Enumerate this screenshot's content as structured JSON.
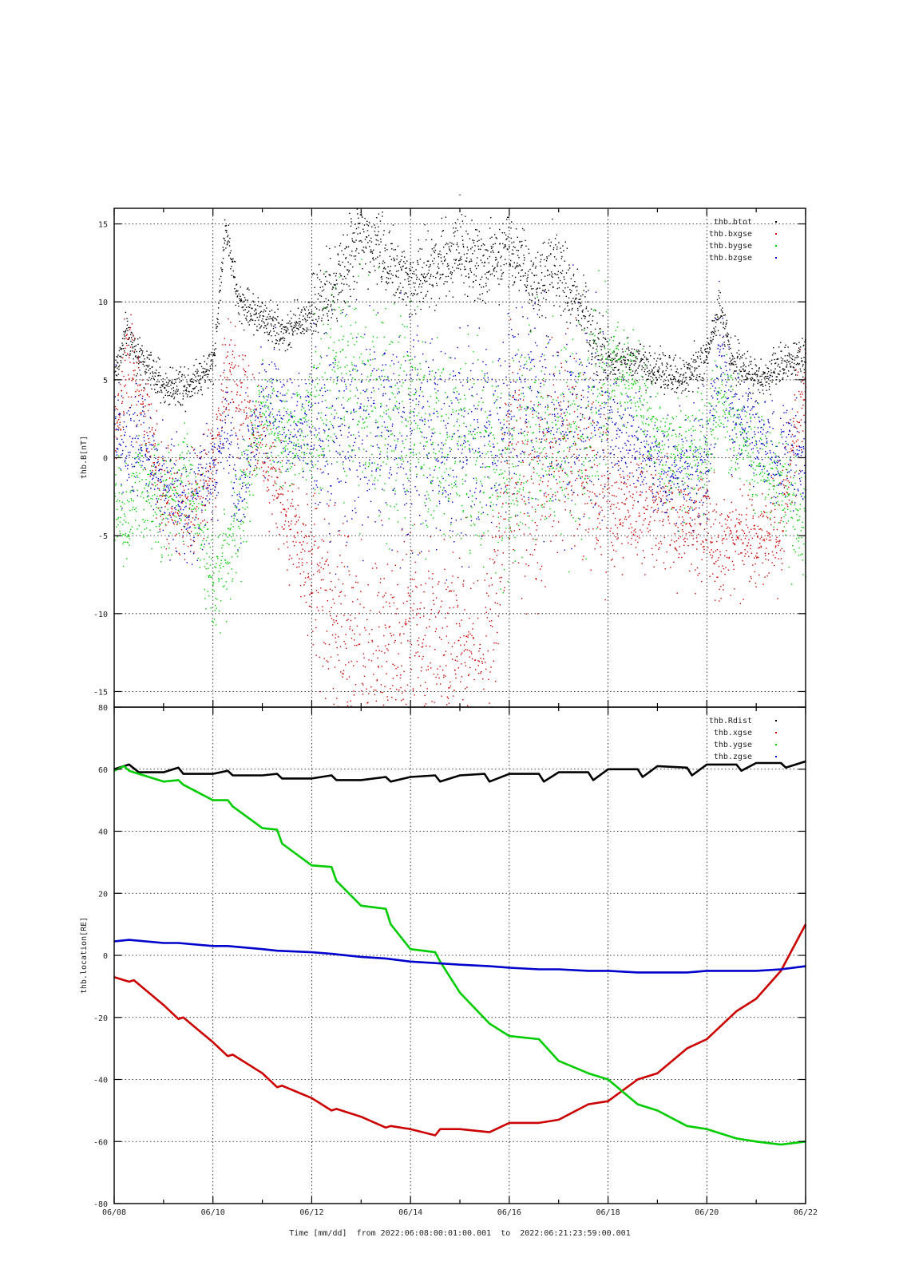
{
  "page": {
    "top_mark": "-"
  },
  "chart_data": [
    {
      "type": "scatter",
      "ylabel": "thb.B[nT]",
      "ylim": [
        -16,
        16
      ],
      "xlim": [
        "2022-06-08",
        "2022-06-22"
      ],
      "y_ticks": [
        -15,
        -10,
        -5,
        0,
        5,
        10,
        15
      ],
      "grid": true,
      "legend_position": "top-right",
      "series": [
        {
          "name": "thb.btot",
          "color": "#000000",
          "x": [
            "06/08 00h",
            "06/08 06h",
            "06/08 12h",
            "06/09 00h",
            "06/09 12h",
            "06/10 00h",
            "06/10 06h",
            "06/10 12h",
            "06/11 00h",
            "06/11 12h",
            "06/12 00h",
            "06/12 12h",
            "06/13 00h",
            "06/13 12h",
            "06/14 00h",
            "06/14 12h",
            "06/15 00h",
            "06/15 12h",
            "06/16 00h",
            "06/16 12h",
            "06/17 00h",
            "06/17 12h",
            "06/18 00h",
            "06/18 12h",
            "06/19 00h",
            "06/19 12h",
            "06/20 00h",
            "06/20 06h",
            "06/20 12h",
            "06/21 00h",
            "06/21 12h",
            "06/22 00h"
          ],
          "values": [
            5.5,
            8.0,
            6.5,
            4.5,
            4.8,
            6.0,
            15.0,
            10.0,
            9.0,
            8.0,
            9.5,
            11.0,
            14.5,
            13.0,
            11.0,
            12.5,
            13.5,
            12.0,
            14.0,
            11.0,
            12.0,
            9.5,
            6.0,
            6.5,
            5.5,
            5.0,
            6.5,
            9.5,
            6.5,
            5.0,
            6.0,
            6.5
          ]
        },
        {
          "name": "thb.bxgse",
          "color": "#cc0000",
          "x": [
            "06/08 00h",
            "06/08 06h",
            "06/08 12h",
            "06/09 00h",
            "06/09 12h",
            "06/10 00h",
            "06/10 06h",
            "06/10 12h",
            "06/11 00h",
            "06/11 12h",
            "06/12 00h",
            "06/12 12h",
            "06/13 00h",
            "06/13 12h",
            "06/14 00h",
            "06/14 12h",
            "06/15 00h",
            "06/15 12h",
            "06/16 00h",
            "06/16 12h",
            "06/17 00h",
            "06/17 12h",
            "06/18 00h",
            "06/18 12h",
            "06/19 00h",
            "06/19 12h",
            "06/20 00h",
            "06/20 06h",
            "06/20 12h",
            "06/21 00h",
            "06/21 12h",
            "06/22 00h"
          ],
          "values": [
            1.0,
            6.5,
            4.0,
            -2.5,
            -3.5,
            -1.0,
            6.0,
            4.0,
            1.0,
            -4.0,
            -7.0,
            -10.0,
            -14.0,
            -13.0,
            -11.0,
            -12.0,
            -12.0,
            -14.0,
            1.0,
            -3.0,
            2.0,
            0.0,
            -3.0,
            -3.5,
            -3.5,
            -4.0,
            -4.5,
            -7.0,
            -4.5,
            -5.5,
            -4.0,
            5.0
          ]
        },
        {
          "name": "thb.bygse",
          "color": "#00cc00",
          "x": [
            "06/08 00h",
            "06/08 06h",
            "06/08 12h",
            "06/09 00h",
            "06/09 12h",
            "06/10 00h",
            "06/10 06h",
            "06/10 12h",
            "06/11 00h",
            "06/11 12h",
            "06/12 00h",
            "06/12 12h",
            "06/13 00h",
            "06/13 12h",
            "06/14 00h",
            "06/14 12h",
            "06/15 00h",
            "06/15 12h",
            "06/16 00h",
            "06/16 12h",
            "06/17 00h",
            "06/17 12h",
            "06/18 00h",
            "06/18 12h",
            "06/19 00h",
            "06/19 12h",
            "06/20 00h",
            "06/20 06h",
            "06/20 12h",
            "06/21 00h",
            "06/21 12h",
            "06/22 00h"
          ],
          "values": [
            -3.0,
            -4.0,
            -2.0,
            -3.0,
            -1.0,
            -8.0,
            -6.0,
            -4.0,
            3.0,
            1.0,
            2.5,
            4.5,
            4.0,
            2.5,
            3.0,
            0.0,
            1.0,
            -0.5,
            -1.0,
            1.0,
            2.0,
            1.0,
            5.5,
            5.0,
            1.0,
            0.0,
            1.0,
            4.0,
            2.0,
            0.0,
            -2.0,
            -5.0
          ]
        },
        {
          "name": "thb.bzgse",
          "color": "#0000cc",
          "x": [
            "06/08 00h",
            "06/08 06h",
            "06/08 12h",
            "06/09 00h",
            "06/09 12h",
            "06/10 00h",
            "06/10 06h",
            "06/10 12h",
            "06/11 00h",
            "06/11 12h",
            "06/12 00h",
            "06/12 12h",
            "06/13 00h",
            "06/13 12h",
            "06/14 00h",
            "06/14 12h",
            "06/15 00h",
            "06/15 12h",
            "06/16 00h",
            "06/16 12h",
            "06/17 00h",
            "06/17 12h",
            "06/18 00h",
            "06/18 12h",
            "06/19 00h",
            "06/19 12h",
            "06/20 00h",
            "06/20 06h",
            "06/20 12h",
            "06/21 00h",
            "06/21 12h",
            "06/22 00h"
          ],
          "values": [
            2.0,
            0.0,
            1.5,
            -2.0,
            -3.0,
            -1.0,
            2.0,
            -3.0,
            4.0,
            2.0,
            2.0,
            1.0,
            2.5,
            2.0,
            2.0,
            1.0,
            0.5,
            1.5,
            3.0,
            4.0,
            2.0,
            3.0,
            2.0,
            1.5,
            -1.0,
            -1.0,
            0.0,
            7.0,
            3.0,
            1.0,
            0.0,
            0.0
          ]
        }
      ]
    },
    {
      "type": "line",
      "ylabel": "thb.location[RE]",
      "xlabel": "Time [mm/dd]  from 2022:06:08:00:01:00.001  to  2022:06:21:23:59:00.001",
      "ylim": [
        -80,
        80
      ],
      "xlim": [
        "2022-06-08",
        "2022-06-22"
      ],
      "y_ticks": [
        -80,
        -60,
        -40,
        -20,
        0,
        20,
        40,
        60,
        80
      ],
      "x_ticks": [
        "06/08",
        "06/10",
        "06/12",
        "06/14",
        "06/16",
        "06/18",
        "06/20",
        "06/22"
      ],
      "grid": true,
      "legend_position": "top-right",
      "series": [
        {
          "name": "thb.Rdist",
          "color": "#000000",
          "x": [
            0,
            0.3,
            0.5,
            1.0,
            1.3,
            1.4,
            2.0,
            2.3,
            2.4,
            3.0,
            3.3,
            3.4,
            4.0,
            4.4,
            4.5,
            5.0,
            5.5,
            5.6,
            6.0,
            6.5,
            6.6,
            7.0,
            7.5,
            7.6,
            8.0,
            8.6,
            8.7,
            9.0,
            9.6,
            9.7,
            10.0,
            10.6,
            10.7,
            11.0,
            11.6,
            11.7,
            12.0,
            12.6,
            12.7,
            13.0,
            13.5,
            13.6,
            14.0
          ],
          "values": [
            60,
            61.5,
            59,
            59,
            60.5,
            58.5,
            58.5,
            59.5,
            58,
            58,
            58.5,
            57,
            57,
            58,
            56.5,
            56.5,
            57.5,
            56,
            57.5,
            58,
            56,
            58,
            58.5,
            56,
            58.5,
            58.5,
            56,
            59,
            59,
            56.5,
            60,
            60,
            57.5,
            61,
            60.5,
            58,
            61.5,
            61.5,
            59.5,
            62,
            62,
            60.5,
            62.5
          ]
        },
        {
          "name": "thb.xgse",
          "color": "#cc0000",
          "x": [
            0,
            0.3,
            0.4,
            1.0,
            1.3,
            1.4,
            2.0,
            2.3,
            2.4,
            3.0,
            3.3,
            3.4,
            4.0,
            4.4,
            4.5,
            5.0,
            5.5,
            5.6,
            6.0,
            6.5,
            6.6,
            7.0,
            7.6,
            8.0,
            8.6,
            9.0,
            9.6,
            10.0,
            10.6,
            11.0,
            11.6,
            12.0,
            12.6,
            13.0,
            13.5,
            14.0
          ],
          "values": [
            -7,
            -8.5,
            -8,
            -16,
            -20.5,
            -20,
            -28,
            -32.5,
            -32,
            -38,
            -42.5,
            -42,
            -46,
            -50,
            -49.5,
            -52,
            -55.5,
            -55,
            -56,
            -58,
            -56,
            -56,
            -57,
            -54,
            -54,
            -53,
            -48,
            -47,
            -40,
            -38,
            -30,
            -27,
            -18,
            -14,
            -5,
            10
          ]
        },
        {
          "name": "thb.ygse",
          "color": "#00cc00",
          "x": [
            0,
            0.2,
            0.3,
            1.0,
            1.3,
            1.4,
            2.0,
            2.3,
            2.4,
            3.0,
            3.3,
            3.4,
            4.0,
            4.4,
            4.5,
            5.0,
            5.5,
            5.6,
            6.0,
            6.5,
            6.6,
            7.0,
            7.6,
            8.0,
            8.6,
            9.0,
            9.6,
            10.0,
            10.6,
            11.0,
            11.6,
            12.0,
            12.6,
            13.0,
            13.5,
            14.0
          ],
          "values": [
            59.5,
            61,
            59.5,
            56,
            56.5,
            55,
            50,
            50,
            48,
            41,
            40.5,
            36,
            29,
            28.5,
            24,
            16,
            15,
            10,
            2,
            1,
            -2,
            -12,
            -22,
            -26,
            -27,
            -34,
            -38,
            -40,
            -48,
            -50,
            -55,
            -56,
            -59,
            -60,
            -61,
            -60
          ]
        },
        {
          "name": "thb.zgse",
          "color": "#0000cc",
          "x": [
            0,
            0.3,
            1.0,
            1.3,
            2.0,
            2.3,
            3.0,
            3.3,
            4.0,
            4.4,
            5.0,
            5.5,
            6.0,
            6.5,
            7.0,
            7.6,
            8.0,
            8.6,
            9.0,
            9.6,
            10.0,
            10.6,
            11.0,
            11.6,
            12.0,
            12.6,
            13.0,
            13.5,
            14.0
          ],
          "values": [
            4.5,
            5,
            4,
            4,
            3,
            3,
            2,
            1.5,
            1,
            0.5,
            -0.5,
            -1,
            -2,
            -2.5,
            -3,
            -3.5,
            -4,
            -4.5,
            -4.5,
            -5,
            -5,
            -5.5,
            -5.5,
            -5.5,
            -5,
            -5,
            -5,
            -4.5,
            -3.5
          ]
        }
      ]
    }
  ]
}
